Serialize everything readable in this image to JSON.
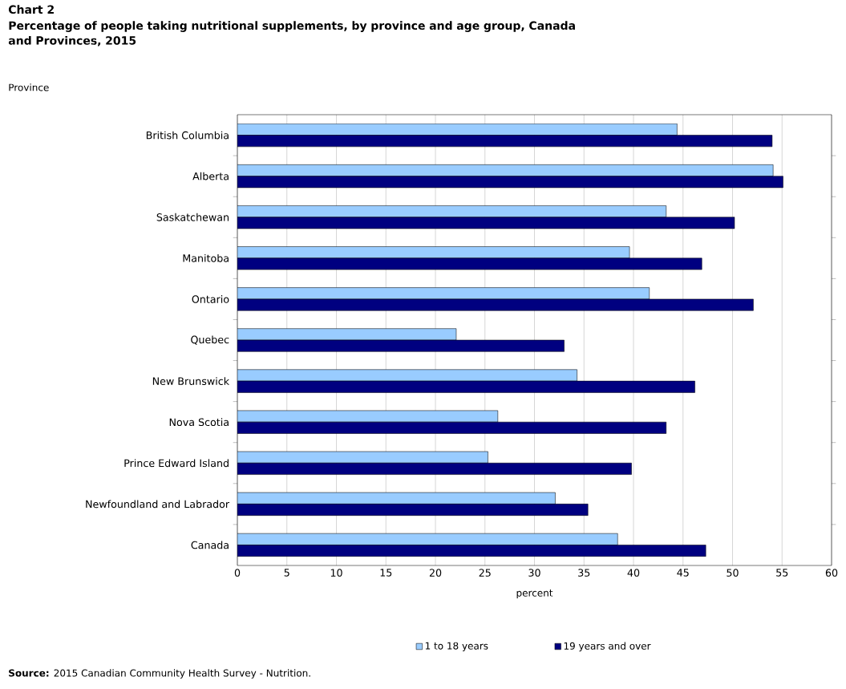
{
  "chart_data": {
    "type": "bar",
    "orientation": "horizontal",
    "title": "Chart 2",
    "subtitle": "Percentage of people taking nutritional supplements, by province and age group, Canada and Provinces, 2015",
    "ylabel": "Province",
    "xlabel": "percent",
    "categories": [
      "British Columbia",
      "Alberta",
      "Saskatchewan",
      "Manitoba",
      "Ontario",
      "Quebec",
      "New Brunswick",
      "Nova Scotia",
      "Prince Edward Island",
      "Newfoundland and Labrador",
      "Canada"
    ],
    "series": [
      {
        "name": "1 to 18 years",
        "color": "#99ccff",
        "values": [
          44.4,
          54.1,
          43.3,
          39.6,
          41.6,
          22.1,
          34.3,
          26.3,
          25.3,
          32.1,
          38.4
        ]
      },
      {
        "name": "19 years and over",
        "color": "#000080",
        "values": [
          54.0,
          55.1,
          50.2,
          46.9,
          52.1,
          33.0,
          46.2,
          43.3,
          39.8,
          35.4,
          47.3
        ]
      }
    ],
    "xlim": [
      0,
      60
    ],
    "xticks": [
      0,
      5,
      10,
      15,
      20,
      25,
      30,
      35,
      40,
      45,
      50,
      55,
      60
    ],
    "grid": "x",
    "legend": "bottom",
    "annotations": [
      "**Source:** 2015 Canadian Community Health Survey - Nutrition."
    ]
  }
}
